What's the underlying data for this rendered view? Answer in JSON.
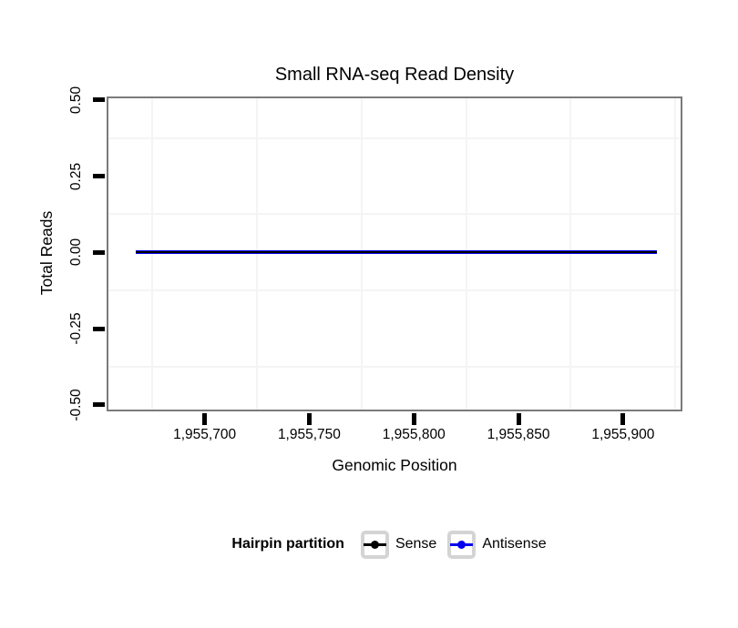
{
  "chart_data": {
    "type": "line",
    "title": "Small RNA-seq Read Density",
    "xlabel": "Genomic Position",
    "ylabel": "Total Reads",
    "xlim": [
      1955654,
      1955927.5
    ],
    "ylim": [
      -0.5,
      0.5
    ],
    "x_ticks": [
      {
        "value": 1955700,
        "label": "1,955,700"
      },
      {
        "value": 1955750,
        "label": "1,955,750"
      },
      {
        "value": 1955800,
        "label": "1,955,800"
      },
      {
        "value": 1955850,
        "label": "1,955,850"
      },
      {
        "value": 1955900,
        "label": "1,955,900"
      }
    ],
    "y_ticks": [
      {
        "value": 0.5,
        "label": "0.50"
      },
      {
        "value": 0.25,
        "label": "0.25"
      },
      {
        "value": 0,
        "label": "0.00"
      },
      {
        "value": -0.25,
        "label": "-0.25"
      },
      {
        "value": -0.5,
        "label": "-0.50"
      }
    ],
    "x_minor_gridlines": [
      1955675,
      1955725,
      1955775,
      1955825,
      1955875,
      1955925
    ],
    "y_minor_gridlines": [
      0.375,
      0.125,
      -0.125,
      -0.375
    ],
    "grid": "minor only, very light grey on white panel",
    "legend_position": "bottom",
    "series": [
      {
        "name": "Antisense",
        "color": "#0000EE",
        "x": [
          1955667,
          1955916
        ],
        "y": [
          0,
          0
        ],
        "line_width": 4
      },
      {
        "name": "Sense",
        "color": "#000000",
        "x": [
          1955667,
          1955916
        ],
        "y": [
          0,
          0
        ],
        "line_width": 2
      }
    ]
  },
  "legend": {
    "title": "Hairpin partition",
    "entries": [
      {
        "label": "Sense",
        "color": "#000000"
      },
      {
        "label": "Antisense",
        "color": "#0000EE"
      }
    ]
  },
  "colors": {
    "background": "#ffffff",
    "panel_border": "#7b7b7b",
    "gridline": "#f4f4f4",
    "tick": "#000000",
    "legend_key_border": "#d4d4d4"
  }
}
